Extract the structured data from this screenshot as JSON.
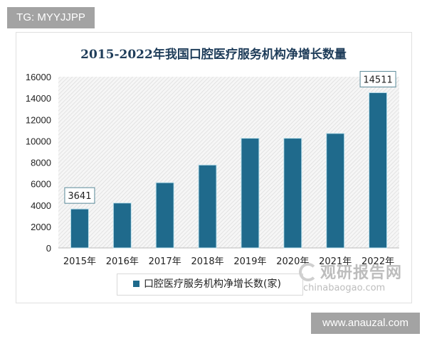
{
  "overlay_label": "TG: MYYJJPP",
  "site_label": "www.anauzal.com",
  "watermark": {
    "cn": "观研报告网",
    "en": "chinabaogao.com"
  },
  "chart_data": {
    "type": "bar",
    "title": "2015-2022年我国口腔医疗服务机构净增长数量",
    "categories": [
      "2015年",
      "2016年",
      "2017年",
      "2018年",
      "2019年",
      "2020年",
      "2021年",
      "2022年"
    ],
    "series": [
      {
        "name": "口腔医疗服务机构净增长数(家)",
        "values": [
          3641,
          4200,
          6100,
          7750,
          10250,
          10250,
          10700,
          14511
        ]
      }
    ],
    "data_labels": {
      "0": "3641",
      "7": "14511"
    },
    "ylim": [
      0,
      16000
    ],
    "yticks": [
      "0",
      "2000",
      "4000",
      "6000",
      "8000",
      "10000",
      "12000",
      "14000",
      "16000"
    ],
    "grid": false,
    "legend": "bottom",
    "colors": {
      "bar": "#1f6a8c",
      "plot_bg": "#ececec"
    }
  }
}
